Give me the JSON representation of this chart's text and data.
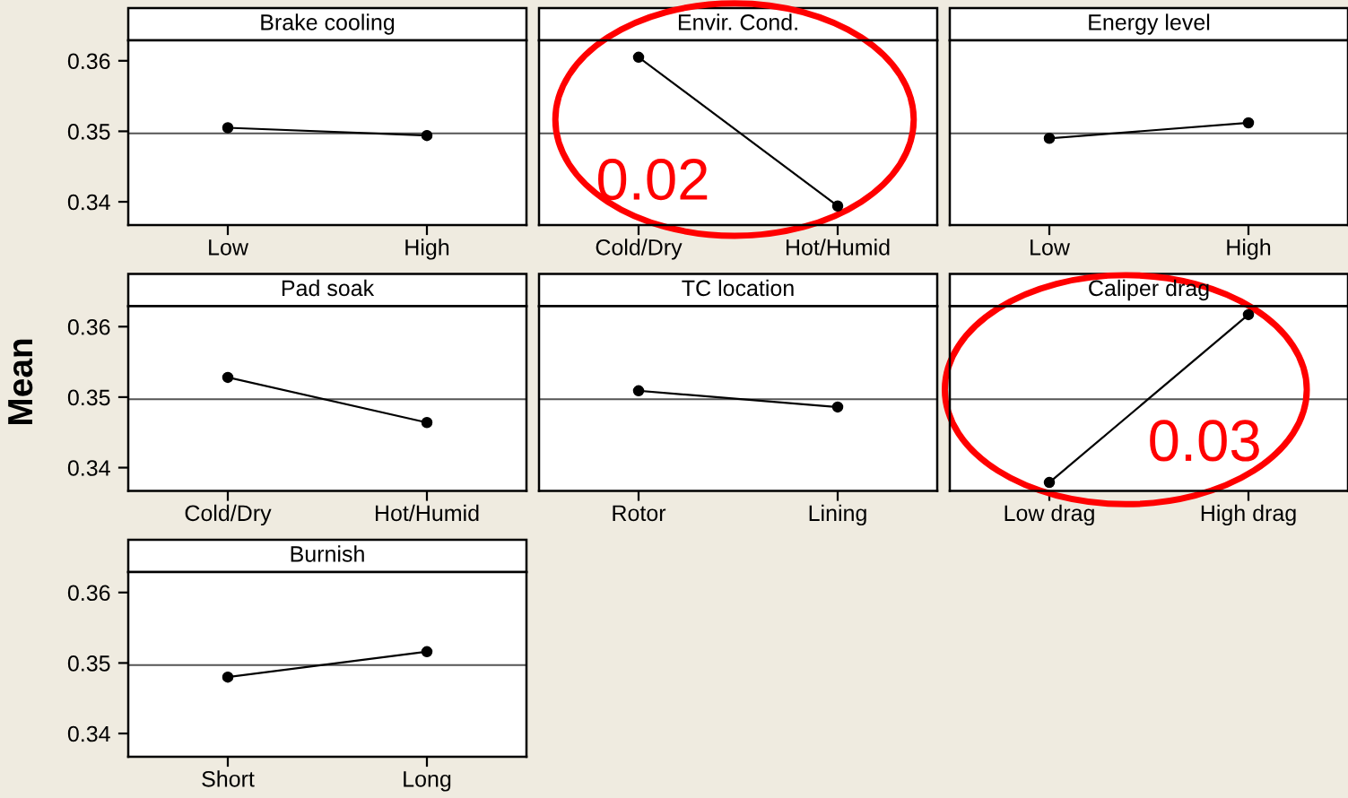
{
  "chart_data": [
    {
      "type": "line",
      "title": "Brake cooling",
      "categories": [
        "Low",
        "High"
      ],
      "values": [
        0.3505,
        0.3494
      ],
      "color": "#000000",
      "marker": "circle",
      "ylim": [
        0.3367,
        0.3629
      ],
      "yticks": [
        0.34,
        0.35,
        0.36
      ],
      "ref_lines": [
        {
          "axis": "y",
          "value": 0.3497,
          "color": "#555555"
        }
      ]
    },
    {
      "type": "line",
      "title": "Envir. Cond.",
      "categories": [
        "Cold/Dry",
        "Hot/Humid"
      ],
      "values": [
        0.3605,
        0.3394
      ],
      "color": "#000000",
      "marker": "circle",
      "ylim": [
        0.3367,
        0.3629
      ],
      "yticks": [
        0.34,
        0.35,
        0.36
      ],
      "tick_labels": "x",
      "ref_lines": [
        {
          "axis": "y",
          "value": 0.3497,
          "color": "#555555"
        }
      ],
      "annotations": [
        "0.02"
      ]
    },
    {
      "type": "line",
      "title": "Energy level",
      "categories": [
        "Low",
        "High"
      ],
      "values": [
        0.349,
        0.3512
      ],
      "color": "#000000",
      "marker": "circle",
      "ylim": [
        0.3367,
        0.3629
      ],
      "yticks": [
        0.34,
        0.35,
        0.36
      ],
      "tick_labels": "x",
      "ref_lines": [
        {
          "axis": "y",
          "value": 0.3497,
          "color": "#555555"
        }
      ]
    },
    {
      "type": "line",
      "title": "Pad soak",
      "ylabel": "Mean",
      "categories": [
        "Cold/Dry",
        "Hot/Humid"
      ],
      "values": [
        0.3528,
        0.3464
      ],
      "color": "#000000",
      "marker": "circle",
      "ylim": [
        0.3367,
        0.3629
      ],
      "yticks": [
        0.34,
        0.35,
        0.36
      ],
      "ref_lines": [
        {
          "axis": "y",
          "value": 0.3497,
          "color": "#555555"
        }
      ]
    },
    {
      "type": "line",
      "title": "TC location",
      "categories": [
        "Rotor",
        "Lining"
      ],
      "values": [
        0.3509,
        0.3486
      ],
      "color": "#000000",
      "marker": "circle",
      "ylim": [
        0.3367,
        0.3629
      ],
      "yticks": [
        0.34,
        0.35,
        0.36
      ],
      "tick_labels": "x",
      "ref_lines": [
        {
          "axis": "y",
          "value": 0.3497,
          "color": "#555555"
        }
      ]
    },
    {
      "type": "line",
      "title": "Caliper drag",
      "categories": [
        "Low drag",
        "High drag"
      ],
      "values": [
        0.3379,
        0.3617
      ],
      "color": "#000000",
      "marker": "circle",
      "ylim": [
        0.3367,
        0.3629
      ],
      "yticks": [
        0.34,
        0.35,
        0.36
      ],
      "tick_labels": "x",
      "ref_lines": [
        {
          "axis": "y",
          "value": 0.3497,
          "color": "#555555"
        }
      ],
      "annotations": [
        "0.03"
      ]
    },
    {
      "type": "line",
      "title": "Burnish",
      "categories": [
        "Short",
        "Long"
      ],
      "values": [
        0.348,
        0.3516
      ],
      "color": "#000000",
      "marker": "circle",
      "ylim": [
        0.3367,
        0.3629
      ],
      "yticks": [
        0.34,
        0.35,
        0.36
      ],
      "ref_lines": [
        {
          "axis": "y",
          "value": 0.3497,
          "color": "#555555"
        }
      ]
    }
  ]
}
